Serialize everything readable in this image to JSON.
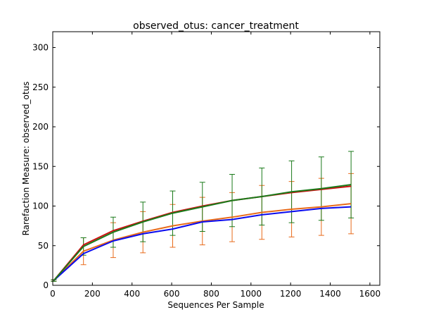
{
  "chart_data": {
    "type": "line",
    "title": "observed_otus: cancer_treatment",
    "xlabel": "Sequences Per Sample",
    "ylabel": "Rarefaction Measure: observed_otus",
    "xlim": [
      0,
      1650
    ],
    "ylim": [
      0,
      320
    ],
    "xticks": [
      0,
      200,
      400,
      600,
      800,
      1000,
      1200,
      1400,
      1600
    ],
    "yticks": [
      0,
      50,
      100,
      150,
      200,
      250,
      300
    ],
    "grid": false,
    "legend": "none",
    "x": [
      5,
      155,
      305,
      455,
      605,
      755,
      905,
      1055,
      1205,
      1355,
      1505
    ],
    "series": [
      {
        "color": "#e86a1a",
        "values": [
          6,
          43,
          57,
          67,
          75,
          81,
          86,
          92,
          96,
          99,
          103
        ],
        "error": [
          1,
          17,
          22,
          26,
          27,
          30,
          31,
          34,
          35,
          36,
          38
        ]
      },
      {
        "color": "#cc1111",
        "values": [
          6,
          51,
          69,
          81,
          92,
          100,
          107,
          112,
          117,
          121,
          125
        ],
        "error": null
      },
      {
        "color": "#0a0aee",
        "values": [
          6,
          40,
          56,
          65,
          71,
          80,
          83,
          89,
          93,
          97,
          99
        ],
        "error": null
      },
      {
        "color": "#1a7a1a",
        "values": [
          6,
          49,
          67,
          80,
          91,
          99,
          107,
          112,
          118,
          122,
          127
        ],
        "error": [
          1,
          11,
          19,
          25,
          28,
          31,
          33,
          36,
          39,
          40,
          42
        ]
      }
    ]
  }
}
